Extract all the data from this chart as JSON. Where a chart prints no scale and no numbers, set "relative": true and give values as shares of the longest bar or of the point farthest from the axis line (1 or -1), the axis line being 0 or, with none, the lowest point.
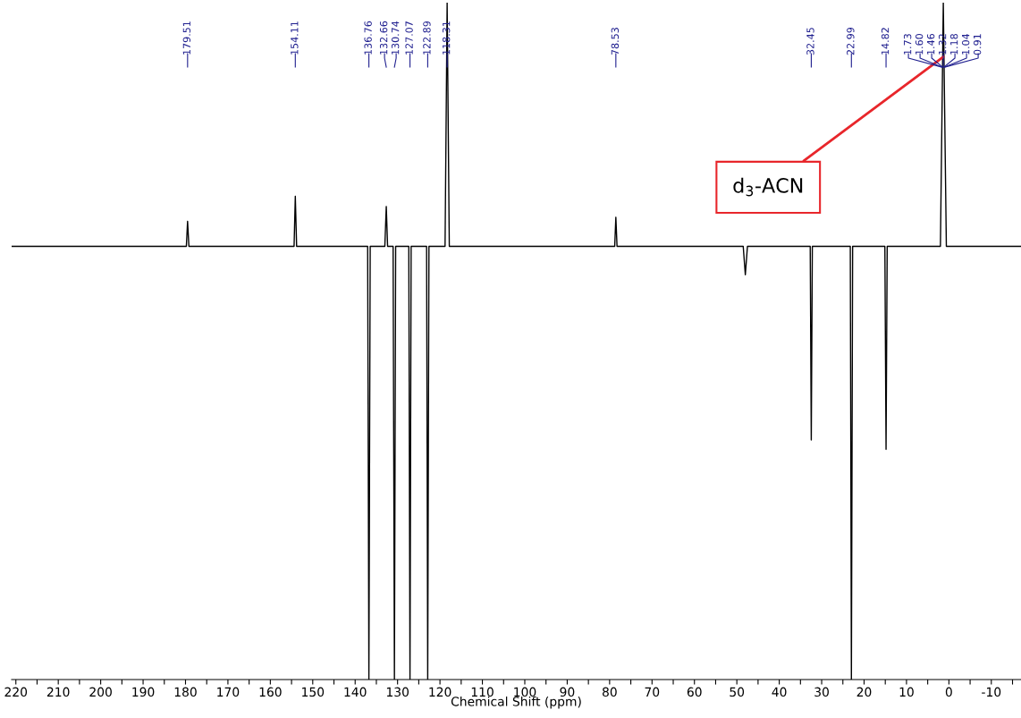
{
  "chart_data": {
    "type": "line",
    "xlabel": "Chemical Shift (ppm)",
    "relative": true,
    "color": "#000000",
    "grid": false,
    "legend": false,
    "tick_labels": "x",
    "xlim": [
      221,
      -17
    ],
    "xticks": [
      220,
      {
        "value": 215,
        "label": null
      },
      210,
      {
        "value": 205,
        "label": null
      },
      200,
      {
        "value": 195,
        "label": null
      },
      190,
      {
        "value": 185,
        "label": null
      },
      180,
      {
        "value": 175,
        "label": null
      },
      170,
      {
        "value": 165,
        "label": null
      },
      160,
      {
        "value": 155,
        "label": null
      },
      150,
      {
        "value": 145,
        "label": null
      },
      140,
      {
        "value": 135,
        "label": null
      },
      130,
      {
        "value": 125,
        "label": null
      },
      120,
      {
        "value": 115,
        "label": null
      },
      110,
      {
        "value": 105,
        "label": null
      },
      100,
      {
        "value": 95,
        "label": null
      },
      90,
      {
        "value": 85,
        "label": null
      },
      80,
      {
        "value": 75,
        "label": null
      },
      70,
      {
        "value": 65,
        "label": null
      },
      60,
      {
        "value": 55,
        "label": null
      },
      50,
      {
        "value": 45,
        "label": null
      },
      40,
      {
        "value": 35,
        "label": null
      },
      30,
      {
        "value": 25,
        "label": null
      },
      20,
      {
        "value": 15,
        "label": null
      },
      10,
      {
        "value": 5,
        "label": null
      },
      0,
      {
        "value": -5,
        "label": null
      },
      -10,
      {
        "value": -15,
        "label": null
      }
    ],
    "x": [
      221,
      211,
      201,
      191,
      181,
      179.8,
      179.51,
      179.2,
      171,
      161,
      154.4,
      154.11,
      153.8,
      145,
      137.05,
      136.76,
      136.45,
      133.0,
      132.66,
      132.35,
      131.05,
      130.74,
      130.45,
      127.35,
      127.07,
      126.8,
      123.15,
      122.89,
      122.6,
      118.8,
      118.31,
      117.8,
      110,
      100,
      90,
      78.8,
      78.53,
      78.25,
      70,
      60,
      50,
      48.5,
      48,
      47.5,
      40,
      32.7,
      32.45,
      32.2,
      23.25,
      22.99,
      22.7,
      15.1,
      14.82,
      14.55,
      8,
      2.0,
      1.32,
      0.6,
      -5,
      -17
    ],
    "values": [
      0.64,
      0.64,
      0.64,
      0.64,
      0.64,
      0.64,
      0.677,
      0.64,
      0.64,
      0.64,
      0.64,
      0.714,
      0.64,
      0.64,
      0.64,
      0,
      0.64,
      0.64,
      0.699,
      0.64,
      0.64,
      0,
      0.64,
      0.64,
      0,
      0.64,
      0.64,
      0,
      0.64,
      0.64,
      1,
      0.64,
      0.64,
      0.64,
      0.64,
      0.64,
      0.683,
      0.64,
      0.64,
      0.64,
      0.64,
      0.64,
      0.598,
      0.64,
      0.64,
      0.64,
      0.354,
      0.64,
      0.64,
      0,
      0.64,
      0.64,
      0.34,
      0.64,
      0.64,
      0.64,
      1,
      0.64,
      0.64,
      0.64
    ],
    "annotations": [
      {
        "text": "179.51",
        "x": 179.51
      },
      {
        "text": "154.11",
        "x": 154.11
      },
      {
        "text": "136.76",
        "x": 136.76
      },
      {
        "text": "132.66",
        "x": 132.66
      },
      {
        "text": "130.74",
        "x": 130.74
      },
      {
        "text": "127.07",
        "x": 127.07
      },
      {
        "text": "122.89",
        "x": 122.89
      },
      {
        "text": "118.31",
        "x": 118.31
      },
      {
        "text": "78.53",
        "x": 78.53
      },
      {
        "text": "32.45",
        "x": 32.45
      },
      {
        "text": "22.99",
        "x": 22.99
      },
      {
        "text": "14.82",
        "x": 14.82
      },
      {
        "text": "1.73",
        "x": 1.73
      },
      {
        "text": "1.60",
        "x": 1.6
      },
      {
        "text": "1.46",
        "x": 1.46
      },
      {
        "text": "1.32",
        "x": 1.32
      },
      {
        "text": "1.18",
        "x": 1.18
      },
      {
        "text": "1.04",
        "x": 1.04
      },
      {
        "text": "0.91",
        "x": 0.91
      },
      {
        "text": "d$_{3}$-ACN",
        "x": 1.32,
        "y": 0.92
      }
    ]
  }
}
